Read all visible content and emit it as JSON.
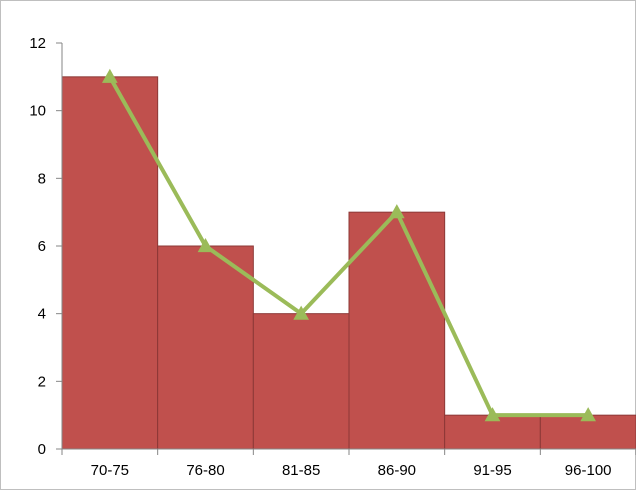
{
  "chart_data": {
    "type": "bar",
    "categories": [
      "70-75",
      "76-80",
      "81-85",
      "86-90",
      "91-95",
      "96-100"
    ],
    "series": [
      {
        "type": "bar",
        "values": [
          11,
          6,
          4,
          7,
          1,
          1
        ],
        "color": "#c0504d"
      },
      {
        "type": "line",
        "values": [
          11,
          6,
          4,
          7,
          1,
          1
        ],
        "color": "#9bbb59",
        "marker": "triangle"
      }
    ],
    "ylim": [
      0,
      12
    ],
    "yticks": [
      "0",
      "2",
      "4",
      "6",
      "8",
      "10",
      "12"
    ],
    "title": "",
    "xlabel": "",
    "ylabel": "",
    "grid": false,
    "legend": "none"
  }
}
